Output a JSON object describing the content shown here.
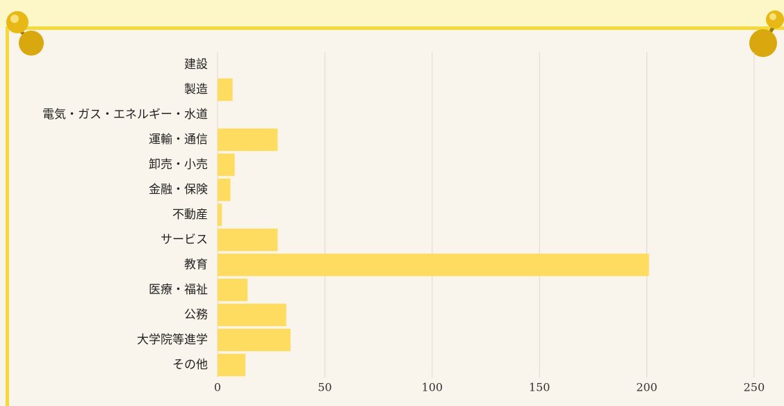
{
  "chart_data": {
    "type": "barh",
    "categories": [
      "建設",
      "製造",
      "電気・ガス・エネルギー・水道",
      "運輸・通信",
      "卸売・小売",
      "金融・保険",
      "不動産",
      "サービス",
      "教育",
      "医療・福祉",
      "公務",
      "大学院等進学",
      "その他"
    ],
    "values": [
      0,
      7,
      0,
      28,
      8,
      6,
      2,
      28,
      201,
      14,
      32,
      34,
      13
    ],
    "color": "#fddc60",
    "xlim": [
      0,
      250
    ],
    "xticks": [
      0,
      50,
      100,
      150,
      200,
      250
    ],
    "grid": true
  }
}
